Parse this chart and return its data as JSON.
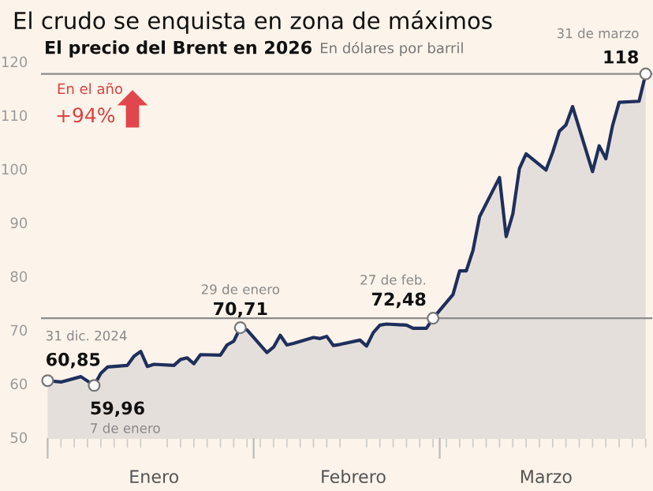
{
  "chart_data": {
    "type": "area",
    "title": "El crudo se enquista en zona de máximos",
    "subtitle": "El precio del Brent en 2026",
    "ylabel": "En dólares por barril",
    "x": [
      "2025-12-31",
      "2026-01-02",
      "2026-01-05",
      "2026-01-07",
      "2026-01-08",
      "2026-01-09",
      "2026-01-12",
      "2026-01-13",
      "2026-01-14",
      "2026-01-15",
      "2026-01-16",
      "2026-01-19",
      "2026-01-20",
      "2026-01-21",
      "2026-01-22",
      "2026-01-23",
      "2026-01-26",
      "2026-01-27",
      "2026-01-28",
      "2026-01-29",
      "2026-01-30",
      "2026-02-02",
      "2026-02-03",
      "2026-02-04",
      "2026-02-05",
      "2026-02-06",
      "2026-02-09",
      "2026-02-10",
      "2026-02-11",
      "2026-02-12",
      "2026-02-13",
      "2026-02-16",
      "2026-02-17",
      "2026-02-18",
      "2026-02-19",
      "2026-02-20",
      "2026-02-23",
      "2026-02-24",
      "2026-02-25",
      "2026-02-26",
      "2026-02-27",
      "2026-03-02",
      "2026-03-03",
      "2026-03-04",
      "2026-03-05",
      "2026-03-06",
      "2026-03-09",
      "2026-03-10",
      "2026-03-11",
      "2026-03-12",
      "2026-03-13",
      "2026-03-16",
      "2026-03-17",
      "2026-03-18",
      "2026-03-19",
      "2026-03-20",
      "2026-03-23",
      "2026-03-24",
      "2026-03-25",
      "2026-03-26",
      "2026-03-27",
      "2026-03-30",
      "2026-03-31"
    ],
    "series": [
      {
        "color": "#1f2f5c",
        "values": [
          60.85,
          60.6,
          61.6,
          59.96,
          62.2,
          63.4,
          63.7,
          65.4,
          66.3,
          63.5,
          63.9,
          63.7,
          64.8,
          65.1,
          64.0,
          65.7,
          65.6,
          67.5,
          68.2,
          70.71,
          70.3,
          66.1,
          67.1,
          69.3,
          67.5,
          67.8,
          68.9,
          68.7,
          69.1,
          67.4,
          67.6,
          68.4,
          67.3,
          69.8,
          71.2,
          71.4,
          71.2,
          70.6,
          70.6,
          70.6,
          72.48,
          76.9,
          81.3,
          81.3,
          85.1,
          91.4,
          98.7,
          87.7,
          91.9,
          100.4,
          103.1,
          100.1,
          103.4,
          107.3,
          108.5,
          111.9,
          99.8,
          104.6,
          102.2,
          108.3,
          112.7,
          112.9,
          118
        ]
      }
    ],
    "xlim": [
      "2025-12-30",
      "2026-04-01"
    ],
    "xticks": [
      {
        "value": "2026-01-16",
        "label": "Enero"
      },
      {
        "value": "2026-02-15",
        "label": "Febrero"
      },
      {
        "value": "2026-03-16",
        "label": "Marzo"
      }
    ],
    "ylim": [
      50,
      120
    ],
    "yticks": [
      50,
      60,
      70,
      80,
      90,
      100,
      110,
      120
    ],
    "grid": false,
    "ref_lines": [
      {
        "axis": "y",
        "value": 72.48,
        "label": null,
        "color": "#8c8c8c"
      },
      {
        "axis": "y",
        "value": 118,
        "label": null,
        "color": "#8c8c8c"
      }
    ],
    "annotations": [
      {
        "text": "31 dic. 2024",
        "x": "2025-12-31",
        "y": 60.85
      },
      {
        "text": "60,85",
        "x": "2025-12-31",
        "y": 60.85
      },
      {
        "text": "59,96",
        "x": "2026-01-07",
        "y": 59.96
      },
      {
        "text": "7 de enero",
        "x": "2026-01-07",
        "y": 59.96
      },
      {
        "text": "29 de enero",
        "x": "2026-01-29",
        "y": 70.71
      },
      {
        "text": "70,71",
        "x": "2026-01-29",
        "y": 70.71
      },
      {
        "text": "27 de feb.",
        "x": "2026-02-27",
        "y": 72.48
      },
      {
        "text": "72,48",
        "x": "2026-02-27",
        "y": 72.48
      },
      {
        "text": "31 de marzo",
        "x": "2026-03-31",
        "y": 118
      },
      {
        "text": "118",
        "x": "2026-03-31",
        "y": 118
      },
      "En el año",
      "+94%"
    ]
  }
}
